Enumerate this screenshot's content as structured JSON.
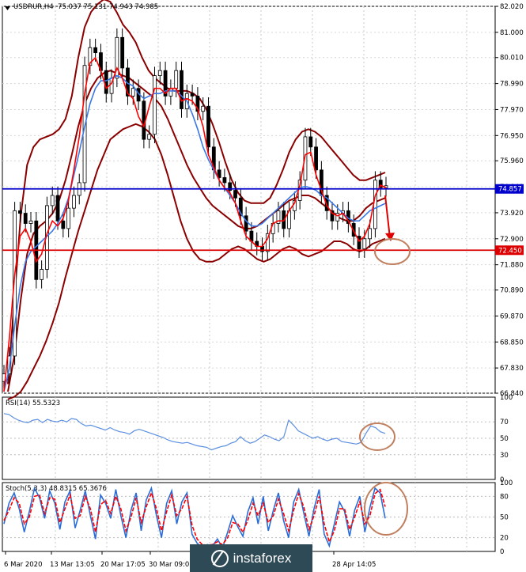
{
  "title_bar": {
    "text": "USDRUR,H4  75.037 75.131 74.943 74.985"
  },
  "rsi_title": "RSI(14) 55.5323",
  "stoch_title": "Stoch(5,3,3) 48.8315 65.3676",
  "watermark": "instaforex",
  "colors": {
    "candle": "#000000",
    "fast_ma": "#ff0000",
    "slow_ma": "#3a78e6",
    "bands": "#8b0000",
    "resistance_line": "#0000cc",
    "support_line": "#dd0000",
    "rsi_line": "#5b8fe0",
    "stoch_main": "#2a6cd8",
    "stoch_signal": "#ff0000",
    "annotation": "#c08060"
  },
  "chart_data": [
    {
      "type": "line",
      "panel": "price",
      "ylim": [
        66.84,
        82.02
      ],
      "y_ticks": [
        "82.020",
        "81.000",
        "80.010",
        "78.990",
        "77.970",
        "76.950",
        "75.960",
        "74.940",
        "73.920",
        "72.900",
        "71.880",
        "70.890",
        "69.870",
        "68.850",
        "67.830",
        "66.840"
      ],
      "x_ticks": [
        "6 Mar 2020",
        "13 Mar 13:05",
        "20 Mar 17:05",
        "30 Mar 09:05",
        "",
        "28 Apr 14:05"
      ],
      "price_labels": [
        {
          "label": "74.857",
          "value": 74.857,
          "color": "#0000cc"
        },
        {
          "label": "72.450",
          "value": 72.45,
          "color": "#dd0000"
        }
      ],
      "horizontal_lines": [
        74.857,
        72.45
      ],
      "series": [
        {
          "name": "",
          "role": "close",
          "values": [
            67.6,
            68.3,
            74.0,
            73.9,
            73.5,
            73.6,
            71.3,
            71.7,
            74.2,
            74.6,
            73.6,
            73.3,
            74.1,
            74.6,
            75.1,
            79.7,
            80.4,
            80.2,
            79.5,
            78.6,
            79.2,
            80.8,
            79.6,
            78.5,
            78.8,
            78.3,
            76.8,
            77.0,
            79.3,
            79.5,
            78.5,
            78.8,
            79.5,
            78.0,
            78.6,
            78.5,
            77.9,
            78.1,
            76.5,
            75.6,
            75.3,
            75.1,
            74.8,
            74.5,
            73.8,
            73.2,
            72.8,
            72.6,
            72.4,
            73.1,
            73.5,
            74.0,
            73.3,
            74.0,
            74.4,
            75.2,
            76.9,
            76.5,
            75.6,
            74.6,
            74.0,
            73.6,
            73.9,
            74.0,
            73.5,
            73.0,
            72.5,
            72.9,
            73.3,
            75.2,
            74.9,
            74.98
          ]
        },
        {
          "name": "",
          "role": "fast_ma",
          "values": [
            66.9,
            69.0,
            71.5,
            73.0,
            73.3,
            72.8,
            72.0,
            72.3,
            73.1,
            73.6,
            73.4,
            73.7,
            74.4,
            75.6,
            76.9,
            78.6,
            79.8,
            80.0,
            79.5,
            78.8,
            79.0,
            79.6,
            79.2,
            78.6,
            78.4,
            77.7,
            77.3,
            78.1,
            78.8,
            78.8,
            78.6,
            78.8,
            78.8,
            78.3,
            78.4,
            78.3,
            78.0,
            77.3,
            76.2,
            75.7,
            75.2,
            74.9,
            74.7,
            74.3,
            73.6,
            73.0,
            72.8,
            72.6,
            72.6,
            72.9,
            73.5,
            73.6,
            73.6,
            74.0,
            74.3,
            75.0,
            76.2,
            76.3,
            75.4,
            74.8,
            74.2,
            73.9,
            73.8,
            73.9,
            73.6,
            73.2,
            72.8,
            73.0,
            73.5,
            74.6,
            75.0,
            74.9
          ]
        },
        {
          "name": "",
          "role": "slow_ma",
          "values": [
            66.9,
            67.8,
            69.5,
            71.0,
            72.0,
            72.4,
            72.6,
            72.8,
            73.0,
            73.2,
            73.5,
            73.9,
            74.5,
            75.4,
            76.3,
            77.3,
            78.2,
            78.8,
            79.1,
            79.1,
            79.2,
            79.3,
            79.2,
            79.0,
            78.9,
            78.6,
            78.4,
            78.5,
            78.6,
            78.6,
            78.7,
            78.7,
            78.7,
            78.5,
            78.3,
            77.8,
            77.2,
            76.5,
            76.0,
            75.6,
            75.2,
            74.9,
            74.6,
            74.3,
            73.9,
            73.6,
            73.4,
            73.4,
            73.5,
            73.7,
            73.9,
            74.1,
            74.3,
            74.5,
            74.7,
            74.9,
            74.95,
            74.9,
            74.8,
            74.6,
            74.5,
            74.3,
            74.1,
            73.9,
            73.7,
            73.6,
            73.6,
            73.8,
            74.0,
            74.1,
            74.2,
            74.3
          ]
        },
        {
          "name": "",
          "role": "upper_band",
          "values": [
            67.2,
            70.5,
            73.8,
            75.8,
            76.5,
            76.8,
            76.9,
            77.0,
            77.2,
            77.6,
            78.5,
            80.0,
            81.2,
            81.8,
            82.1,
            82.3,
            82.2,
            81.8,
            81.3,
            81.0,
            80.6,
            80.0,
            79.5,
            79.2,
            79.0,
            78.8,
            78.7,
            78.7,
            78.7,
            78.6,
            78.4,
            78.0,
            77.4,
            76.7,
            75.9,
            75.2,
            74.7,
            74.4,
            74.3,
            74.3,
            74.3,
            74.5,
            75.0,
            75.6,
            76.3,
            76.8,
            77.1,
            77.2,
            77.1,
            76.9,
            76.6,
            76.3,
            76.0,
            75.7,
            75.4,
            75.2,
            75.2,
            75.3,
            75.4,
            75.5
          ]
        },
        {
          "name": "",
          "role": "middle_band",
          "values": [
            66.9,
            68.3,
            70.5,
            72.3,
            73.1,
            73.4,
            73.6,
            73.9,
            74.4,
            75.2,
            76.2,
            77.3,
            78.2,
            78.8,
            79.2,
            79.4,
            79.5,
            79.4,
            79.3,
            79.2,
            79.0,
            78.8,
            78.6,
            78.4,
            78.1,
            77.6,
            77.0,
            76.4,
            75.8,
            75.3,
            74.9,
            74.5,
            74.2,
            74.0,
            73.8,
            73.6,
            73.4,
            73.3,
            73.3,
            73.4,
            73.6,
            73.8,
            74.0,
            74.2,
            74.4,
            74.5,
            74.6,
            74.6,
            74.5,
            74.3,
            74.1,
            73.9,
            73.7,
            73.6,
            73.6,
            73.8,
            74.1,
            74.3,
            74.4,
            74.5
          ]
        },
        {
          "name": "",
          "role": "lower_band",
          "values": [
            66.6,
            66.7,
            66.9,
            67.3,
            67.8,
            68.3,
            68.9,
            69.6,
            70.4,
            71.4,
            72.3,
            73.2,
            74.0,
            74.8,
            75.6,
            76.2,
            76.8,
            77.0,
            77.2,
            77.3,
            77.4,
            77.3,
            77.1,
            76.8,
            76.2,
            75.4,
            74.5,
            73.6,
            72.9,
            72.4,
            72.1,
            72.0,
            72.0,
            72.1,
            72.3,
            72.5,
            72.6,
            72.5,
            72.3,
            72.1,
            72.0,
            72.1,
            72.3,
            72.5,
            72.6,
            72.5,
            72.3,
            72.2,
            72.3,
            72.4,
            72.6,
            72.8,
            72.8,
            72.7,
            72.5,
            72.4,
            72.5,
            72.7,
            72.8,
            72.9
          ]
        }
      ]
    },
    {
      "type": "line",
      "panel": "rsi",
      "title": "RSI(14) 55.5323",
      "ylim": [
        0,
        100
      ],
      "y_ticks": [
        "100",
        "70",
        "50",
        "30",
        "0"
      ],
      "series": [
        {
          "name": "RSI(14)",
          "values": [
            80,
            79,
            75,
            72,
            70,
            69,
            72,
            73,
            69,
            73,
            71,
            70,
            72,
            70,
            74,
            73,
            68,
            65,
            66,
            64,
            62,
            60,
            63,
            60,
            58,
            57,
            55,
            59,
            61,
            59,
            57,
            55,
            53,
            51,
            48,
            46,
            45,
            44,
            45,
            43,
            41,
            40,
            39,
            36,
            38,
            40,
            41,
            44,
            46,
            52,
            47,
            44,
            46,
            50,
            54,
            52,
            49,
            47,
            52,
            72,
            66,
            59,
            56,
            53,
            50,
            52,
            49,
            47,
            49,
            50,
            46,
            45,
            44,
            43,
            45,
            56,
            65,
            63,
            58,
            56
          ]
        }
      ]
    },
    {
      "type": "line",
      "panel": "stochastic",
      "title": "Stoch(5,3,3) 48.8315 65.3676",
      "ylim": [
        0,
        100
      ],
      "y_ticks": [
        "100",
        "80",
        "50",
        "20",
        "0"
      ],
      "series": [
        {
          "name": "Stoch main",
          "values": [
            40,
            70,
            85,
            62,
            28,
            58,
            92,
            78,
            48,
            88,
            70,
            32,
            72,
            88,
            34,
            60,
            88,
            52,
            18,
            82,
            70,
            48,
            90,
            52,
            20,
            60,
            85,
            30,
            75,
            92,
            52,
            20,
            70,
            88,
            40,
            72,
            85,
            25,
            12,
            6,
            10,
            8,
            18,
            5,
            28,
            52,
            36,
            22,
            58,
            78,
            40,
            80,
            30,
            60,
            85,
            45,
            20,
            72,
            90,
            55,
            22,
            62,
            90,
            25,
            8,
            40,
            72,
            58,
            22,
            60,
            80,
            28,
            64,
            92,
            85,
            48
          ]
        },
        {
          "name": "Stoch signal",
          "values": [
            45,
            60,
            78,
            70,
            40,
            50,
            80,
            82,
            55,
            78,
            76,
            42,
            62,
            82,
            48,
            52,
            80,
            62,
            28,
            68,
            74,
            55,
            80,
            62,
            30,
            50,
            78,
            42,
            65,
            85,
            62,
            30,
            58,
            82,
            52,
            62,
            80,
            38,
            18,
            10,
            9,
            10,
            14,
            10,
            20,
            42,
            40,
            28,
            46,
            70,
            52,
            70,
            42,
            52,
            76,
            55,
            30,
            60,
            84,
            64,
            32,
            52,
            80,
            40,
            14,
            30,
            62,
            62,
            32,
            50,
            72,
            40,
            52,
            84,
            90,
            65
          ]
        }
      ]
    }
  ]
}
